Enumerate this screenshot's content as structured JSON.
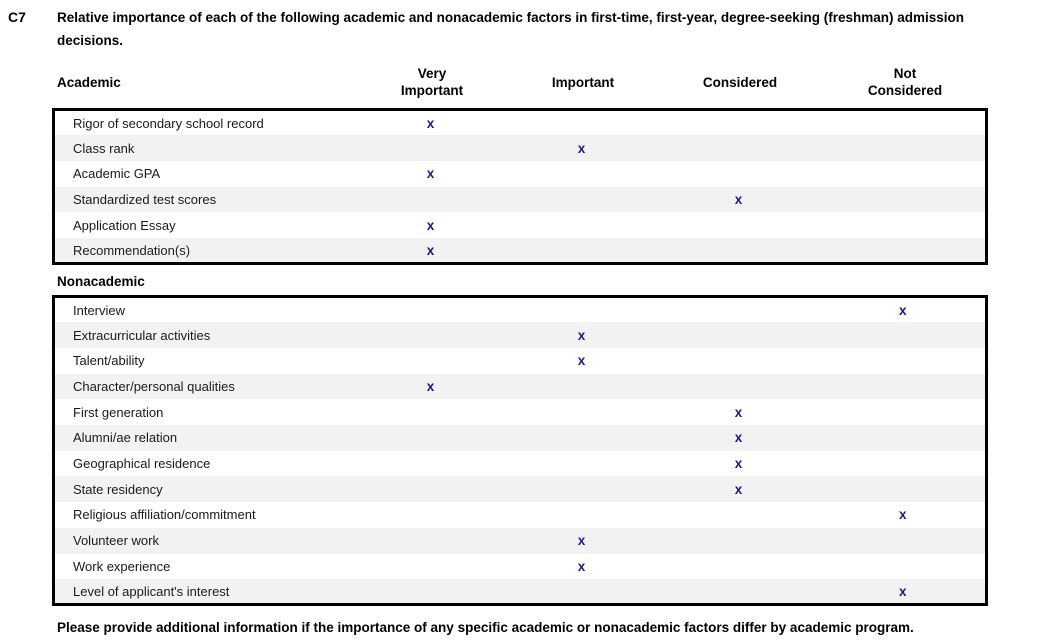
{
  "question": {
    "id": "C7",
    "text": "Relative importance of each of the following academic and nonacademic factors in first-time, first-year, degree-seeking (freshman) admission decisions."
  },
  "columns": [
    {
      "label": "Very Important",
      "lines": [
        "Very",
        "Important"
      ]
    },
    {
      "label": "Important",
      "lines": [
        "Important"
      ]
    },
    {
      "label": "Considered",
      "lines": [
        "Considered"
      ]
    },
    {
      "label": "Not Considered",
      "lines": [
        "Not",
        "Considered"
      ]
    }
  ],
  "academic": {
    "label": "Academic",
    "rows": [
      {
        "factor": "Rigor of secondary school record",
        "rating": "Very Important"
      },
      {
        "factor": "Class rank",
        "rating": "Important"
      },
      {
        "factor": "Academic GPA",
        "rating": "Very Important"
      },
      {
        "factor": "Standardized test scores",
        "rating": "Considered"
      },
      {
        "factor": "Application Essay",
        "rating": "Very Important"
      },
      {
        "factor": "Recommendation(s)",
        "rating": "Very Important"
      }
    ]
  },
  "nonacademic": {
    "label": "Nonacademic",
    "rows": [
      {
        "factor": "Interview",
        "rating": "Not Considered"
      },
      {
        "factor": "Extracurricular activities",
        "rating": "Important"
      },
      {
        "factor": "Talent/ability",
        "rating": "Important"
      },
      {
        "factor": "Character/personal qualities",
        "rating": "Very Important"
      },
      {
        "factor": "First generation",
        "rating": "Considered"
      },
      {
        "factor": "Alumni/ae relation",
        "rating": "Considered"
      },
      {
        "factor": "Geographical residence",
        "rating": "Considered"
      },
      {
        "factor": "State residency",
        "rating": "Considered"
      },
      {
        "factor": "Religious affiliation/commitment",
        "rating": "Not Considered"
      },
      {
        "factor": "Volunteer work",
        "rating": "Important"
      },
      {
        "factor": "Work experience",
        "rating": "Important"
      },
      {
        "factor": "Level of applicant's interest",
        "rating": "Not Considered"
      }
    ]
  },
  "note": "Please provide additional information if the importance of any specific academic or nonacademic factors differ by academic program.",
  "mark_glyph": "x",
  "colors": {
    "mark": "#1a1a8c",
    "stripe": "#f2f2f2",
    "border": "#000000"
  }
}
